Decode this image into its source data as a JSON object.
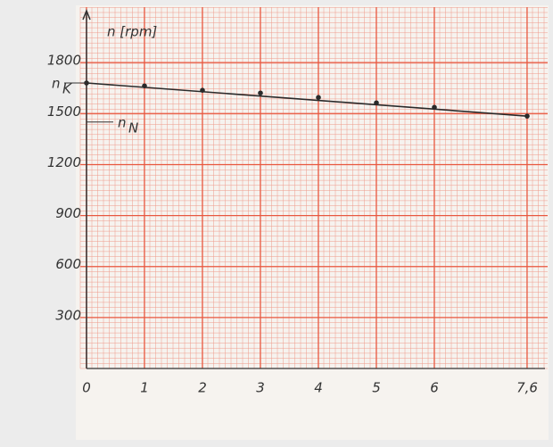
{
  "chart_data": {
    "type": "scatter",
    "y_label": "n [rpm]",
    "x": [
      0,
      1,
      2,
      3,
      4,
      5,
      6,
      7.6
    ],
    "series": [
      {
        "color": "#2a2a2a",
        "values": [
          1680,
          1663,
          1637,
          1621,
          1595,
          1563,
          1537,
          1485
        ]
      }
    ],
    "fit_line": {
      "x": [
        0,
        7.6
      ],
      "values": [
        1680,
        1485
      ],
      "color": "#2a2a2a"
    },
    "annotations": [
      {
        "text": "n",
        "sub": "K",
        "value": 1680
      },
      {
        "text": "n",
        "sub": "N",
        "value": 1450
      }
    ],
    "xlim": [
      0,
      8
    ],
    "ylim": [
      0,
      2100
    ],
    "xticks": [
      0,
      1,
      2,
      3,
      4,
      5,
      6,
      {
        "value": 7.6,
        "label": "7,6"
      }
    ],
    "yticks": [
      300,
      600,
      900,
      1200,
      1500,
      1800
    ],
    "grid": true
  }
}
